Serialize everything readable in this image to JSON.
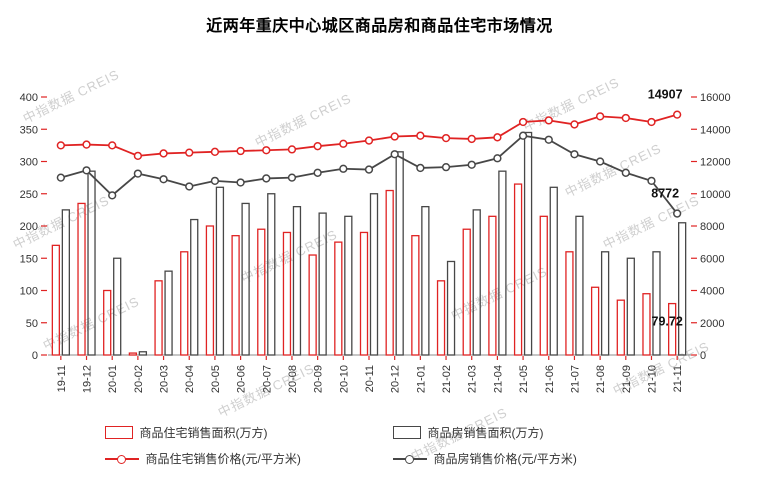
{
  "title": "近两年重庆中心城区商品房和商品住宅市场情况",
  "watermark": {
    "text": "中指数据 CREIS"
  },
  "colors": {
    "residential_red": "#e02323",
    "commercial_dark": "#474747",
    "axis_text": "#333333",
    "annotation_text": "#111111"
  },
  "chart_data": {
    "type": "bar+line",
    "title": "近两年重庆中心城区商品房和商品住宅市场情况",
    "categories": [
      "19-11",
      "19-12",
      "20-01",
      "20-02",
      "20-03",
      "20-04",
      "20-05",
      "20-06",
      "20-07",
      "20-08",
      "20-09",
      "20-10",
      "20-11",
      "20-12",
      "21-01",
      "21-02",
      "21-03",
      "21-04",
      "21-05",
      "21-06",
      "21-07",
      "21-08",
      "21-09",
      "21-10",
      "21-11"
    ],
    "series": [
      {
        "name": "商品住宅销售面积(万方)",
        "type": "bar",
        "axis": "left",
        "color": "#e02323",
        "values": [
          170,
          235,
          100,
          3,
          115,
          160,
          200,
          185,
          195,
          190,
          155,
          175,
          190,
          255,
          185,
          115,
          195,
          215,
          265,
          215,
          160,
          105,
          85,
          95,
          79.72
        ]
      },
      {
        "name": "商品房销售面积(万方)",
        "type": "bar",
        "axis": "left",
        "color": "#474747",
        "values": [
          225,
          285,
          150,
          5,
          130,
          210,
          260,
          235,
          250,
          230,
          220,
          215,
          250,
          315,
          230,
          145,
          225,
          285,
          345,
          260,
          215,
          160,
          150,
          160,
          205
        ]
      },
      {
        "name": "商品住宅销售价格(元/平方米)",
        "type": "line",
        "axis": "right",
        "color": "#e02323",
        "values": [
          13000,
          13050,
          13000,
          12350,
          12500,
          12550,
          12600,
          12650,
          12700,
          12750,
          12950,
          13100,
          13300,
          13550,
          13600,
          13450,
          13400,
          13500,
          14450,
          14550,
          14300,
          14800,
          14700,
          14450,
          14907
        ]
      },
      {
        "name": "商品房销售价格(元/平方米)",
        "type": "line",
        "axis": "right",
        "color": "#474747",
        "values": [
          11000,
          11450,
          9900,
          11250,
          10900,
          10450,
          10800,
          10700,
          10950,
          11000,
          11300,
          11550,
          11500,
          12450,
          11600,
          11650,
          11800,
          12200,
          13600,
          13350,
          12450,
          12000,
          11300,
          10800,
          8772
        ]
      }
    ],
    "left_axis": {
      "min": 0,
      "max": 400,
      "step": 50
    },
    "right_axis": {
      "min": 0,
      "max": 16000,
      "step": 2000
    },
    "annotations": [
      {
        "text": "14907",
        "series_index": 2,
        "point": "last"
      },
      {
        "text": "8772",
        "series_index": 3,
        "point": "last"
      },
      {
        "text": "79.72",
        "series_index": 0,
        "point": "last"
      }
    ],
    "grid": false,
    "legend_position": "bottom"
  }
}
